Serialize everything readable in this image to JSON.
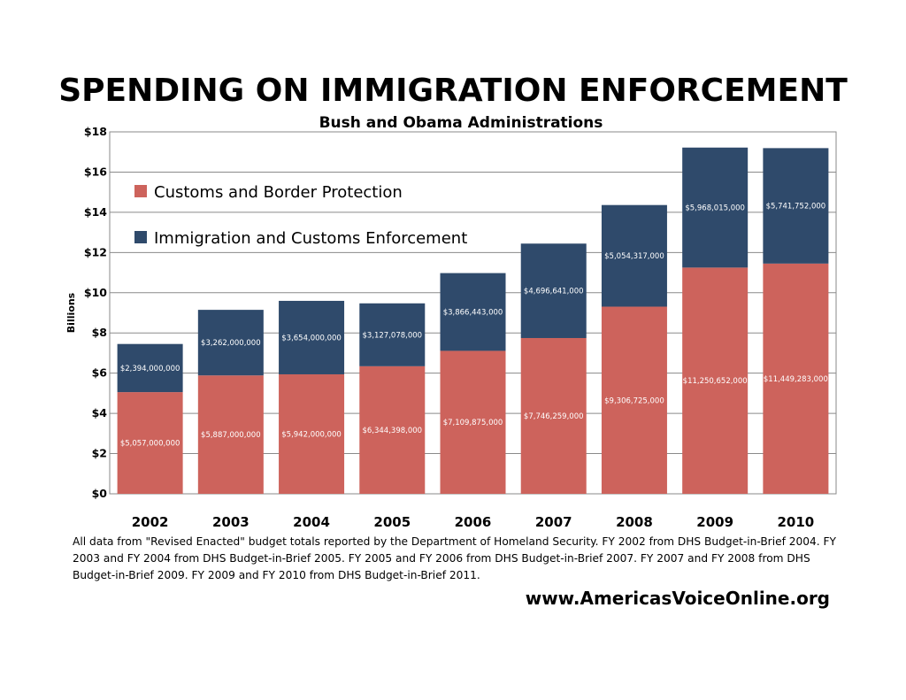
{
  "colors": {
    "cbp": "#cd635c",
    "ice": "#2f4a6b",
    "grid": "#8a8a8a",
    "label_text": "#ffffff"
  },
  "chart_data": {
    "type": "bar",
    "stacked": true,
    "title": "SPENDING ON IMMIGRATION ENFORCEMENT",
    "subtitle": "Bush and Obama Administrations",
    "ylabel": "Billions",
    "ylim": [
      0,
      18
    ],
    "yticks": [
      "$0",
      "$2",
      "$4",
      "$6",
      "$8",
      "$10",
      "$12",
      "$14",
      "$16",
      "$18"
    ],
    "grid": true,
    "legend_position": "top-left",
    "categories": [
      "2002",
      "2003",
      "2004",
      "2005",
      "2006",
      "2007",
      "2008",
      "2009",
      "2010"
    ],
    "series": [
      {
        "name": "Customs and Border Protection",
        "color": "#cd635c",
        "values": [
          5.057,
          5.887,
          5.942,
          6.344398,
          7.109875,
          7.746259,
          9.306725,
          11.250652,
          11.449283
        ],
        "labels": [
          "$5,057,000,000",
          "$5,887,000,000",
          "$5,942,000,000",
          "$6,344,398,000",
          "$7,109,875,000",
          "$7,746,259,000",
          "$9,306,725,000",
          "$11,250,652,000",
          "$11,449,283,000"
        ]
      },
      {
        "name": "Immigration and Customs Enforcement",
        "color": "#2f4a6b",
        "values": [
          2.394,
          3.262,
          3.654,
          3.127078,
          3.866443,
          4.696641,
          5.054317,
          5.968015,
          5.741752
        ],
        "labels": [
          "$2,394,000,000",
          "$3,262,000,000",
          "$3,654,000,000",
          "$3,127,078,000",
          "$3,866,443,000",
          "$4,696,641,000",
          "$5,054,317,000",
          "$5,968,015,000",
          "$5,741,752,000"
        ]
      }
    ]
  },
  "footer": {
    "source": "All data from \"Revised Enacted\" budget totals reported by the Department of Homeland Security. FY 2002 from DHS Budget-in-Brief 2004. FY 2003 and FY 2004 from DHS Budget-in-Brief 2005. FY 2005 and FY 2006 from DHS Budget-in-Brief 2007. FY 2007 and FY 2008 from DHS Budget-in-Brief 2009. FY 2009 and FY 2010 from DHS Budget-in-Brief 2011.",
    "website": "www.AmericasVoiceOnline.org"
  }
}
